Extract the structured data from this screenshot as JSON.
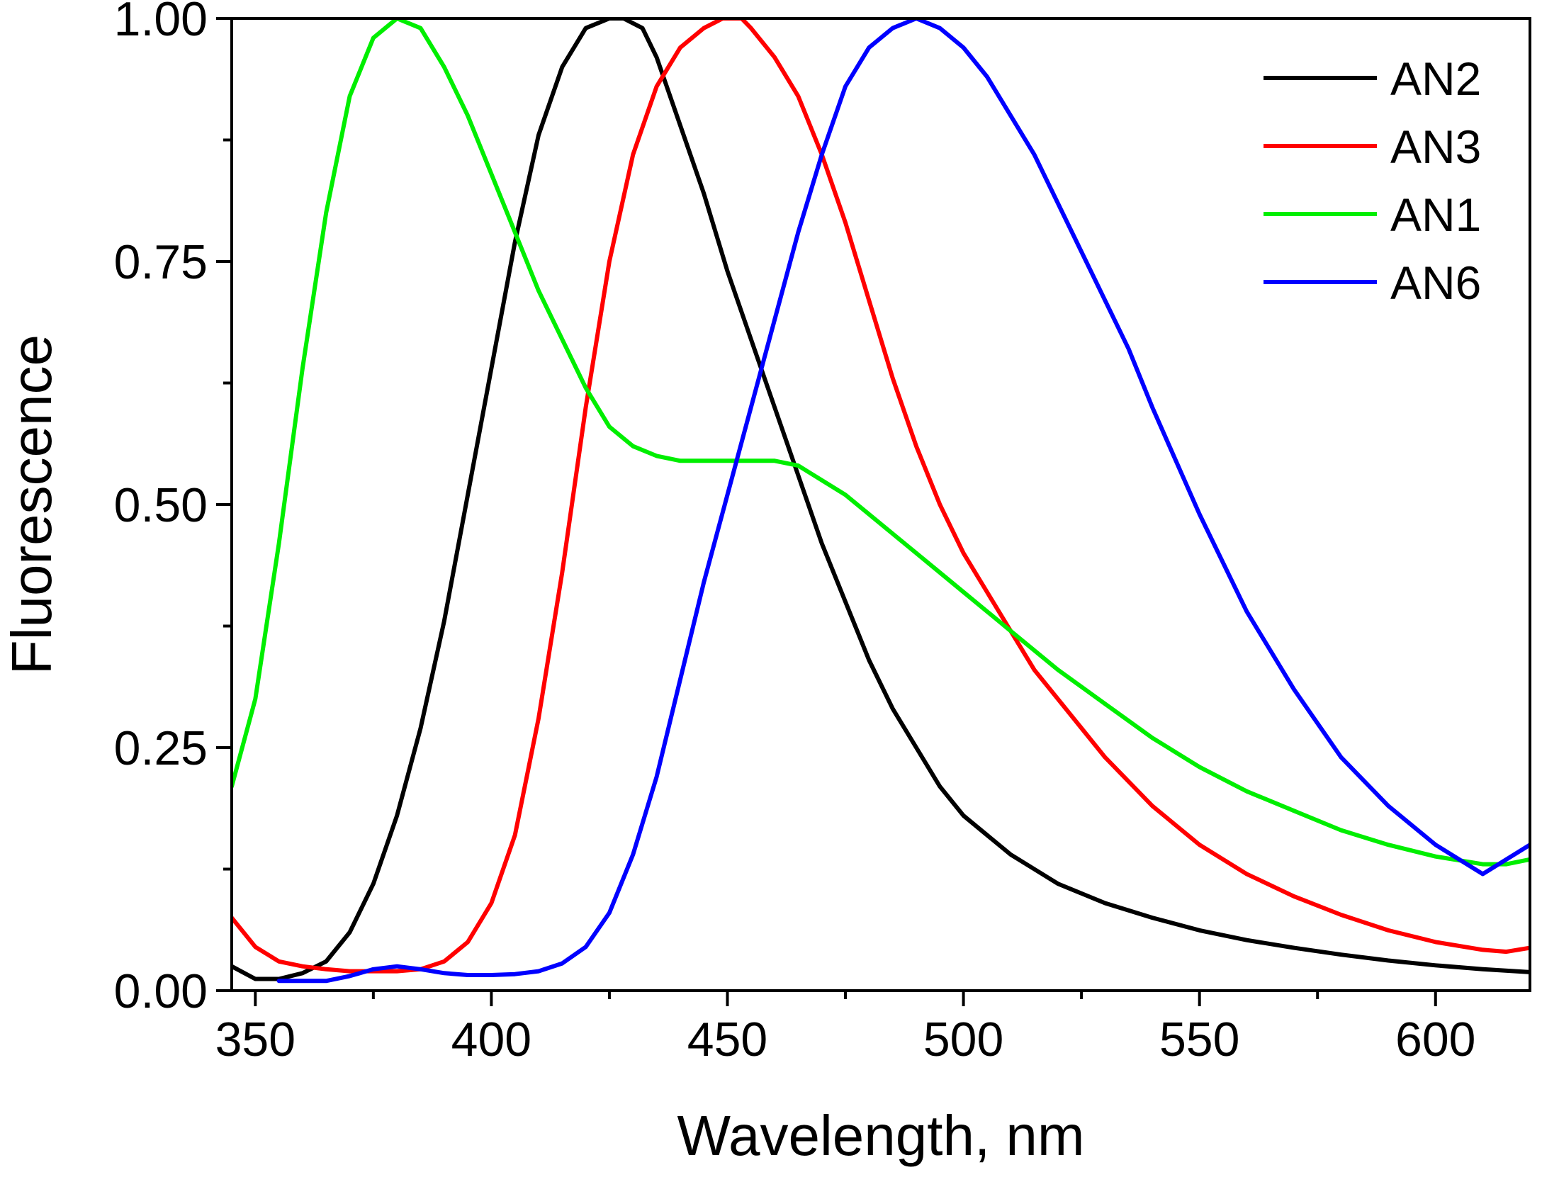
{
  "chart_data": {
    "type": "line",
    "title": "",
    "xlabel": "Wavelength, nm",
    "ylabel": "Fluorescence",
    "xlim": [
      345,
      620
    ],
    "ylim": [
      0,
      1.0
    ],
    "xticks": [
      350,
      400,
      450,
      500,
      550,
      600
    ],
    "xtick_labels": [
      "350",
      "400",
      "450",
      "500",
      "550",
      "600"
    ],
    "yticks": [
      0,
      0.25,
      0.5,
      0.75,
      1.0
    ],
    "ytick_labels": [
      "0.00",
      "0.25",
      "0.50",
      "0.75",
      "1.00"
    ],
    "grid": false,
    "legend_position": "top-right",
    "series": [
      {
        "name": "AN2",
        "color": "#000000",
        "x": [
          345,
          350,
          355,
          360,
          365,
          370,
          375,
          380,
          385,
          390,
          395,
          400,
          405,
          410,
          415,
          420,
          425,
          428,
          432,
          435,
          440,
          445,
          450,
          455,
          460,
          465,
          470,
          475,
          480,
          485,
          490,
          495,
          500,
          505,
          510,
          515,
          520,
          530,
          540,
          550,
          560,
          570,
          580,
          590,
          600,
          610,
          620
        ],
        "y": [
          0.025,
          0.012,
          0.012,
          0.018,
          0.03,
          0.06,
          0.11,
          0.18,
          0.27,
          0.38,
          0.51,
          0.64,
          0.77,
          0.88,
          0.95,
          0.99,
          1.0,
          1.0,
          0.99,
          0.96,
          0.89,
          0.82,
          0.74,
          0.67,
          0.6,
          0.53,
          0.46,
          0.4,
          0.34,
          0.29,
          0.25,
          0.21,
          0.18,
          0.16,
          0.14,
          0.125,
          0.11,
          0.09,
          0.075,
          0.062,
          0.052,
          0.044,
          0.037,
          0.031,
          0.026,
          0.022,
          0.019
        ]
      },
      {
        "name": "AN3",
        "color": "#ff0000",
        "x": [
          345,
          350,
          355,
          360,
          365,
          370,
          375,
          380,
          385,
          390,
          395,
          400,
          405,
          410,
          415,
          420,
          425,
          430,
          435,
          440,
          445,
          449,
          453,
          455,
          460,
          465,
          470,
          475,
          480,
          485,
          490,
          495,
          500,
          505,
          510,
          515,
          520,
          530,
          540,
          550,
          560,
          570,
          580,
          590,
          600,
          610,
          615,
          620
        ],
        "y": [
          0.075,
          0.045,
          0.03,
          0.025,
          0.022,
          0.02,
          0.02,
          0.02,
          0.022,
          0.03,
          0.05,
          0.09,
          0.16,
          0.28,
          0.43,
          0.6,
          0.75,
          0.86,
          0.93,
          0.97,
          0.99,
          1.0,
          1.0,
          0.99,
          0.96,
          0.92,
          0.86,
          0.79,
          0.71,
          0.63,
          0.56,
          0.5,
          0.45,
          0.41,
          0.37,
          0.33,
          0.3,
          0.24,
          0.19,
          0.15,
          0.12,
          0.097,
          0.078,
          0.062,
          0.05,
          0.042,
          0.04,
          0.044
        ]
      },
      {
        "name": "AN1",
        "color": "#00ee00",
        "x": [
          345,
          350,
          355,
          360,
          365,
          370,
          375,
          380,
          385,
          390,
          395,
          400,
          405,
          410,
          415,
          420,
          425,
          430,
          435,
          440,
          445,
          450,
          455,
          460,
          465,
          470,
          475,
          480,
          485,
          490,
          495,
          500,
          505,
          510,
          520,
          530,
          540,
          550,
          560,
          570,
          580,
          590,
          600,
          610,
          615,
          620
        ],
        "y": [
          0.21,
          0.3,
          0.46,
          0.64,
          0.8,
          0.92,
          0.98,
          1.0,
          0.99,
          0.95,
          0.9,
          0.84,
          0.78,
          0.72,
          0.67,
          0.62,
          0.58,
          0.56,
          0.55,
          0.545,
          0.545,
          0.545,
          0.545,
          0.545,
          0.54,
          0.525,
          0.51,
          0.49,
          0.47,
          0.45,
          0.43,
          0.41,
          0.39,
          0.37,
          0.33,
          0.295,
          0.26,
          0.23,
          0.205,
          0.185,
          0.165,
          0.15,
          0.138,
          0.13,
          0.13,
          0.135
        ]
      },
      {
        "name": "AN6",
        "color": "#0000ff",
        "x": [
          355,
          360,
          365,
          370,
          375,
          380,
          385,
          390,
          395,
          400,
          405,
          410,
          415,
          420,
          425,
          430,
          435,
          440,
          445,
          450,
          455,
          460,
          465,
          470,
          475,
          480,
          485,
          490,
          495,
          500,
          505,
          510,
          515,
          520,
          525,
          530,
          535,
          540,
          545,
          550,
          555,
          560,
          570,
          580,
          590,
          600,
          610,
          620
        ],
        "y": [
          0.01,
          0.01,
          0.01,
          0.015,
          0.022,
          0.025,
          0.022,
          0.018,
          0.016,
          0.016,
          0.017,
          0.02,
          0.028,
          0.045,
          0.08,
          0.14,
          0.22,
          0.32,
          0.42,
          0.51,
          0.6,
          0.69,
          0.78,
          0.86,
          0.93,
          0.97,
          0.99,
          1.0,
          0.99,
          0.97,
          0.94,
          0.9,
          0.86,
          0.81,
          0.76,
          0.71,
          0.66,
          0.6,
          0.545,
          0.49,
          0.44,
          0.39,
          0.31,
          0.24,
          0.19,
          0.15,
          0.12,
          0.15
        ]
      }
    ]
  }
}
